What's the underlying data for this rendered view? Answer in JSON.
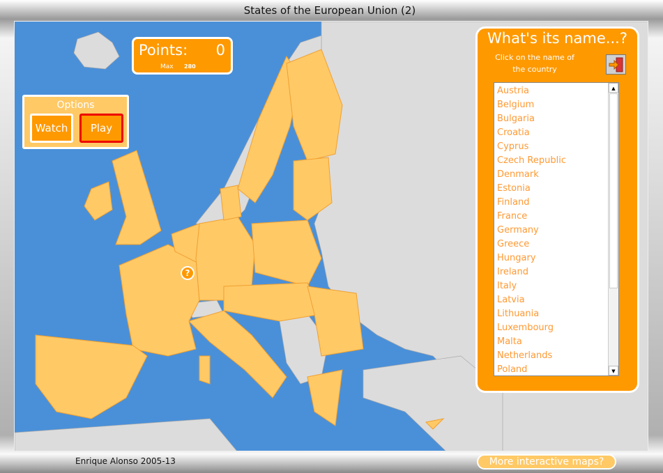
{
  "window": {
    "title": "States of the European Union (2)"
  },
  "score": {
    "label": "Points:",
    "value": "0",
    "max_label": "Max",
    "max_value": "280"
  },
  "options": {
    "title": "Options",
    "watch": "Watch",
    "play": "Play",
    "selected": "Play"
  },
  "map": {
    "marker": "?",
    "colors": {
      "sea": "#4a90d9",
      "eu": "#ffc966",
      "border": "#f0a030",
      "other": "#dcdcdc"
    }
  },
  "panel": {
    "title": "What's its name...?",
    "instruction": "Click on the name of the country",
    "exit_icon": "exit-door-icon",
    "countries": [
      "Austria",
      "Belgium",
      "Bulgaria",
      "Croatia",
      "Cyprus",
      "Czech Republic",
      "Denmark",
      "Estonia",
      "Finland",
      "France",
      "Germany",
      "Greece",
      "Hungary",
      "Ireland",
      "Italy",
      "Latvia",
      "Lithuania",
      "Luxembourg",
      "Malta",
      "Netherlands",
      "Poland"
    ]
  },
  "footer": {
    "credit": "Enrique Alonso 2005-13",
    "more": "More interactive maps?"
  }
}
